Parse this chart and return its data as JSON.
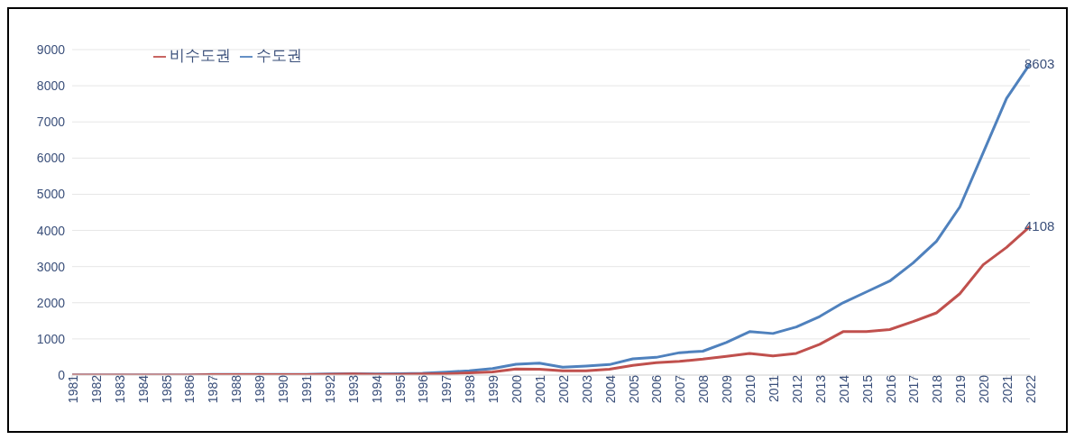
{
  "chart_data": {
    "type": "line",
    "categories": [
      "1981",
      "1982",
      "1983",
      "1984",
      "1985",
      "1986",
      "1987",
      "1988",
      "1989",
      "1990",
      "1991",
      "1992",
      "1993",
      "1994",
      "1995",
      "1996",
      "1997",
      "1998",
      "1999",
      "2000",
      "2001",
      "2002",
      "2003",
      "2004",
      "2005",
      "2006",
      "2007",
      "2008",
      "2009",
      "2010",
      "2011",
      "2012",
      "2013",
      "2014",
      "2015",
      "2016",
      "2017",
      "2018",
      "2019",
      "2020",
      "2021",
      "2022"
    ],
    "series": [
      {
        "name": "수도권",
        "color": "#4f81bd",
        "values": [
          0,
          0,
          0,
          0,
          0,
          0,
          20,
          20,
          20,
          20,
          20,
          30,
          40,
          30,
          40,
          50,
          80,
          120,
          180,
          300,
          330,
          220,
          250,
          290,
          450,
          490,
          620,
          660,
          900,
          1200,
          1150,
          1330,
          1620,
          2000,
          2300,
          2600,
          3100,
          3700,
          4650,
          6150,
          7650,
          8603
        ],
        "value_labels": [
          null,
          null,
          null,
          null,
          null,
          null,
          null,
          null,
          null,
          null,
          null,
          null,
          null,
          null,
          null,
          null,
          null,
          null,
          null,
          null,
          null,
          null,
          null,
          null,
          null,
          null,
          null,
          null,
          null,
          null,
          null,
          null,
          null,
          null,
          null,
          null,
          null,
          null,
          null,
          null,
          null,
          "8603"
        ]
      },
      {
        "name": "비수도권",
        "color": "#c0504d",
        "values": [
          0,
          0,
          0,
          0,
          0,
          0,
          10,
          10,
          10,
          10,
          10,
          20,
          30,
          20,
          20,
          30,
          40,
          60,
          90,
          170,
          160,
          120,
          120,
          160,
          270,
          340,
          380,
          440,
          520,
          600,
          530,
          600,
          850,
          1200,
          1200,
          1260,
          1480,
          1720,
          2250,
          3050,
          3530,
          4108
        ],
        "value_labels": [
          null,
          null,
          null,
          null,
          null,
          null,
          null,
          null,
          null,
          null,
          null,
          null,
          null,
          null,
          null,
          null,
          null,
          null,
          null,
          null,
          null,
          null,
          null,
          null,
          null,
          null,
          null,
          null,
          null,
          null,
          null,
          null,
          null,
          null,
          null,
          null,
          null,
          null,
          null,
          null,
          null,
          "4108"
        ]
      }
    ],
    "ylim": [
      0,
      9000
    ],
    "yticks": [
      0,
      1000,
      2000,
      3000,
      4000,
      5000,
      6000,
      7000,
      8000,
      9000
    ],
    "grid": "y",
    "legend": "top left",
    "marker": "none",
    "line_style": "solid"
  }
}
